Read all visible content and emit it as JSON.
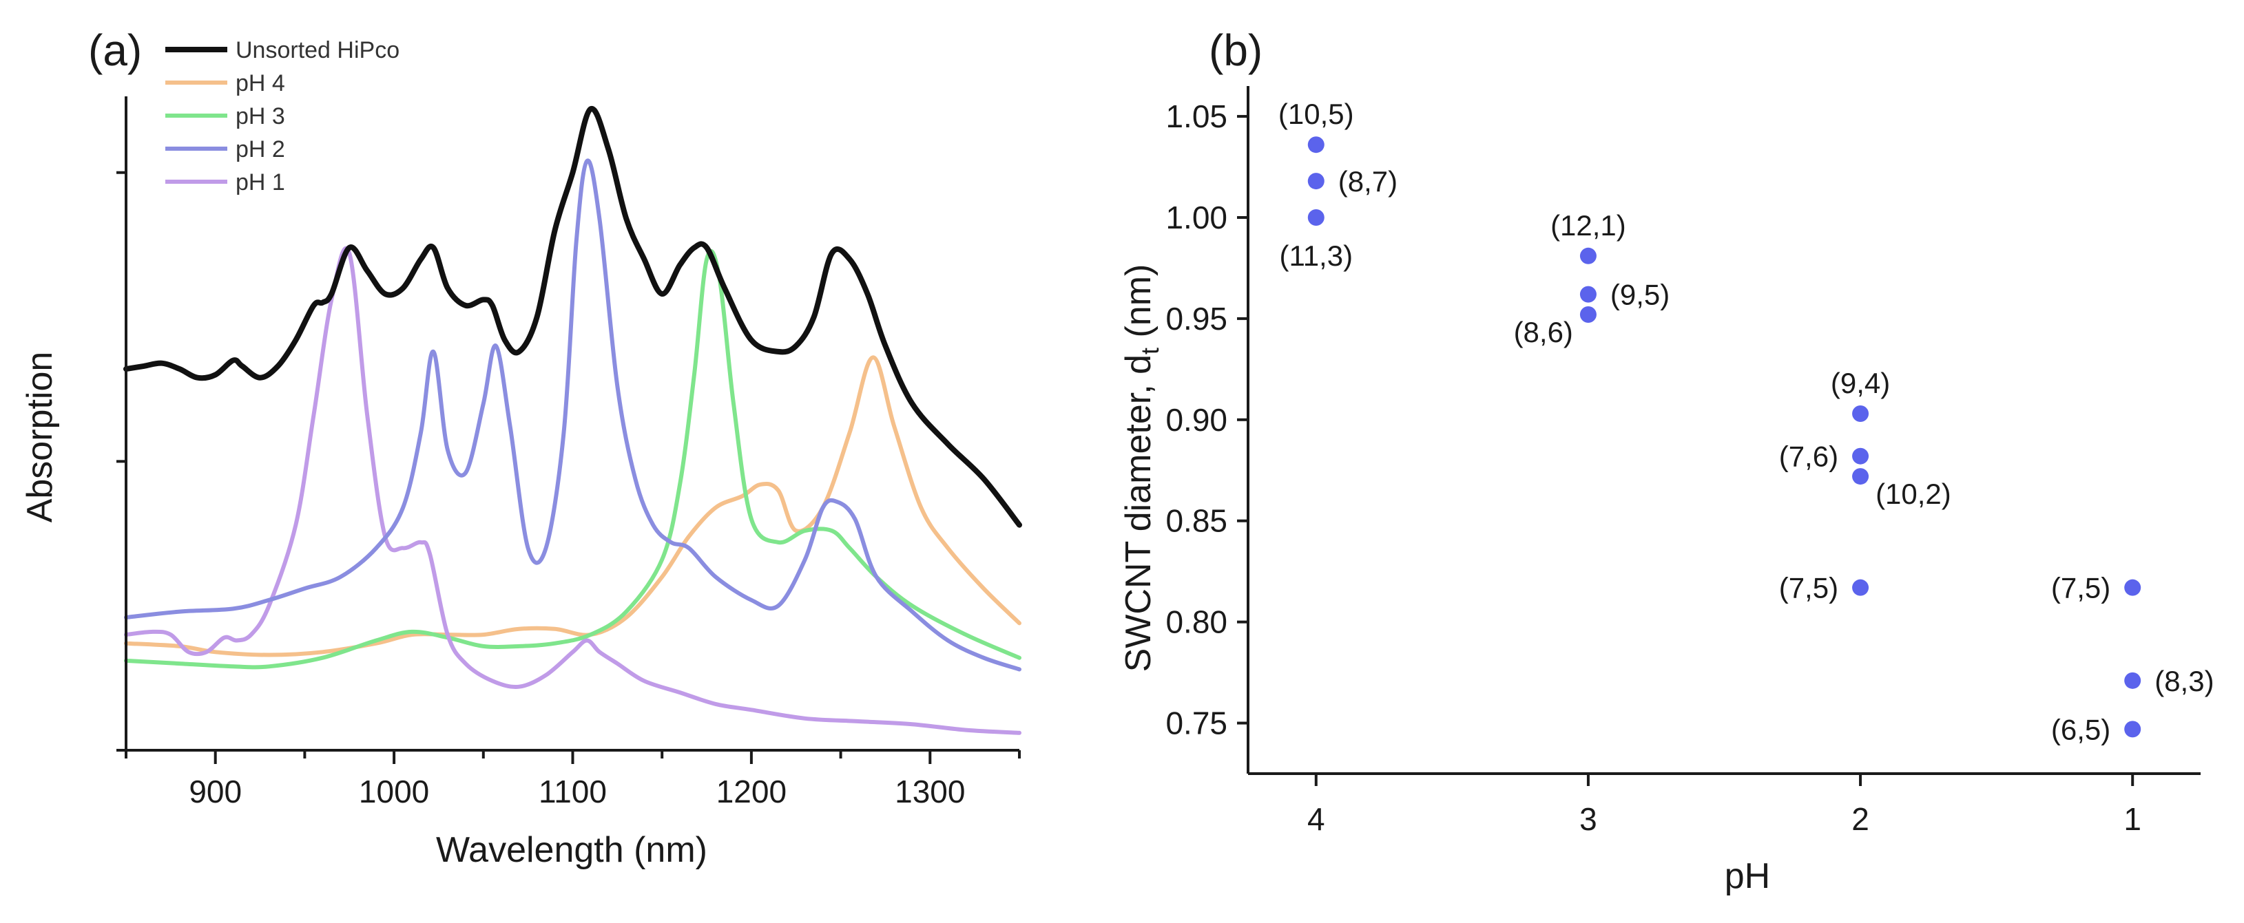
{
  "chart_data": [
    {
      "panel_label": "(a)",
      "type": "line",
      "xlabel": "Wavelength (nm)",
      "ylabel": "Absorption",
      "xlim": [
        850,
        1350
      ],
      "xticks": [
        900,
        1000,
        1100,
        1200,
        1300
      ],
      "ylim": [
        0,
        1
      ],
      "yticks_labeled": false,
      "legend_position": "top-left",
      "series": [
        {
          "name": "Unsorted HiPco",
          "color": "#111111",
          "x": [
            850,
            860,
            870,
            880,
            890,
            900,
            910,
            915,
            925,
            935,
            945,
            955,
            960,
            965,
            975,
            985,
            995,
            1005,
            1015,
            1022,
            1030,
            1040,
            1050,
            1055,
            1062,
            1070,
            1080,
            1090,
            1100,
            1110,
            1120,
            1130,
            1140,
            1150,
            1160,
            1168,
            1175,
            1185,
            1200,
            1215,
            1225,
            1235,
            1245,
            1255,
            1265,
            1275,
            1290,
            1310,
            1330,
            1350
          ],
          "y": [
            0.66,
            0.665,
            0.67,
            0.66,
            0.645,
            0.65,
            0.675,
            0.665,
            0.645,
            0.665,
            0.71,
            0.77,
            0.775,
            0.79,
            0.87,
            0.83,
            0.79,
            0.8,
            0.85,
            0.87,
            0.8,
            0.77,
            0.78,
            0.77,
            0.71,
            0.69,
            0.75,
            0.9,
            1.0,
            1.11,
            1.04,
            0.92,
            0.85,
            0.79,
            0.84,
            0.87,
            0.87,
            0.8,
            0.71,
            0.69,
            0.7,
            0.75,
            0.86,
            0.85,
            0.79,
            0.7,
            0.6,
            0.53,
            0.47,
            0.39
          ]
        },
        {
          "name": "pH 4",
          "color": "#f5c08b",
          "x": [
            850,
            880,
            900,
            930,
            960,
            990,
            1010,
            1030,
            1050,
            1070,
            1090,
            1110,
            1130,
            1150,
            1165,
            1180,
            1195,
            1205,
            1215,
            1225,
            1240,
            1255,
            1268,
            1280,
            1295,
            1310,
            1330,
            1350
          ],
          "y": [
            0.185,
            0.18,
            0.17,
            0.165,
            0.17,
            0.185,
            0.2,
            0.2,
            0.2,
            0.21,
            0.21,
            0.2,
            0.23,
            0.3,
            0.37,
            0.42,
            0.44,
            0.46,
            0.45,
            0.38,
            0.42,
            0.55,
            0.68,
            0.56,
            0.42,
            0.35,
            0.28,
            0.22
          ]
        },
        {
          "name": "pH 3",
          "color": "#7fe58c",
          "x": [
            850,
            880,
            910,
            930,
            960,
            990,
            1010,
            1030,
            1050,
            1070,
            1090,
            1110,
            1130,
            1150,
            1160,
            1168,
            1175,
            1182,
            1190,
            1200,
            1215,
            1230,
            1245,
            1255,
            1270,
            1290,
            1320,
            1350
          ],
          "y": [
            0.155,
            0.15,
            0.145,
            0.145,
            0.16,
            0.19,
            0.205,
            0.195,
            0.18,
            0.18,
            0.185,
            0.2,
            0.24,
            0.33,
            0.46,
            0.65,
            0.85,
            0.82,
            0.6,
            0.4,
            0.36,
            0.38,
            0.38,
            0.35,
            0.3,
            0.25,
            0.2,
            0.16
          ]
        },
        {
          "name": "pH 2",
          "color": "#8a8de0",
          "x": [
            850,
            880,
            910,
            930,
            950,
            970,
            990,
            1005,
            1015,
            1022,
            1030,
            1040,
            1050,
            1057,
            1065,
            1075,
            1085,
            1095,
            1102,
            1108,
            1115,
            1125,
            1135,
            1145,
            1155,
            1165,
            1180,
            1200,
            1215,
            1230,
            1240,
            1248,
            1258,
            1270,
            1290,
            1310,
            1330,
            1350
          ],
          "y": [
            0.23,
            0.24,
            0.245,
            0.26,
            0.28,
            0.3,
            0.35,
            0.42,
            0.55,
            0.69,
            0.52,
            0.48,
            0.6,
            0.7,
            0.56,
            0.35,
            0.35,
            0.55,
            0.88,
            1.02,
            0.92,
            0.63,
            0.47,
            0.39,
            0.36,
            0.35,
            0.3,
            0.26,
            0.25,
            0.33,
            0.42,
            0.43,
            0.4,
            0.3,
            0.24,
            0.19,
            0.16,
            0.14
          ]
        },
        {
          "name": "pH 1",
          "color": "#c09be8",
          "x": [
            850,
            865,
            875,
            885,
            895,
            905,
            912,
            920,
            930,
            945,
            955,
            965,
            975,
            985,
            995,
            1005,
            1015,
            1020,
            1030,
            1040,
            1055,
            1070,
            1085,
            1100,
            1108,
            1115,
            1125,
            1140,
            1160,
            1180,
            1200,
            1230,
            1260,
            1290,
            1320,
            1350
          ],
          "y": [
            0.2,
            0.205,
            0.2,
            0.17,
            0.17,
            0.195,
            0.19,
            0.2,
            0.25,
            0.39,
            0.58,
            0.78,
            0.86,
            0.58,
            0.37,
            0.35,
            0.36,
            0.34,
            0.2,
            0.15,
            0.12,
            0.11,
            0.13,
            0.17,
            0.19,
            0.17,
            0.15,
            0.12,
            0.1,
            0.08,
            0.07,
            0.055,
            0.05,
            0.045,
            0.035,
            0.03
          ]
        }
      ]
    },
    {
      "panel_label": "(b)",
      "type": "scatter",
      "xlabel": "pH",
      "ylabel": "SWCNT diameter, d",
      "ylabel_subscript": "t",
      "ylabel_suffix": " (nm)",
      "xlim": [
        4.25,
        0.75
      ],
      "ylim": [
        0.725,
        1.065
      ],
      "xticks": [
        4,
        3,
        2,
        1
      ],
      "yticks": [
        0.75,
        0.8,
        0.85,
        0.9,
        0.95,
        1.0,
        1.05
      ],
      "ytick_labels": [
        "0.75",
        "0.80",
        "0.85",
        "0.90",
        "0.95",
        "1.00",
        "1.05"
      ],
      "marker_color": "#5b63ec",
      "points": [
        {
          "x": 4,
          "y": 1.036,
          "label": "(10,5)",
          "side": "above"
        },
        {
          "x": 4,
          "y": 1.018,
          "label": "(8,7)",
          "side": "right"
        },
        {
          "x": 4,
          "y": 1.0,
          "label": "(11,3)",
          "side": "below"
        },
        {
          "x": 3,
          "y": 0.981,
          "label": "(12,1)",
          "side": "above"
        },
        {
          "x": 3,
          "y": 0.962,
          "label": "(9,5)",
          "side": "right"
        },
        {
          "x": 3,
          "y": 0.952,
          "label": "(8,6)",
          "side": "left-below"
        },
        {
          "x": 2,
          "y": 0.903,
          "label": "(9,4)",
          "side": "above"
        },
        {
          "x": 2,
          "y": 0.882,
          "label": "(7,6)",
          "side": "left"
        },
        {
          "x": 2,
          "y": 0.872,
          "label": "(10,2)",
          "side": "right-below"
        },
        {
          "x": 2,
          "y": 0.817,
          "label": "(7,5)",
          "side": "left"
        },
        {
          "x": 1,
          "y": 0.817,
          "label": "(7,5)",
          "side": "left"
        },
        {
          "x": 1,
          "y": 0.771,
          "label": "(8,3)",
          "side": "right"
        },
        {
          "x": 1,
          "y": 0.747,
          "label": "(6,5)",
          "side": "left"
        }
      ]
    }
  ]
}
